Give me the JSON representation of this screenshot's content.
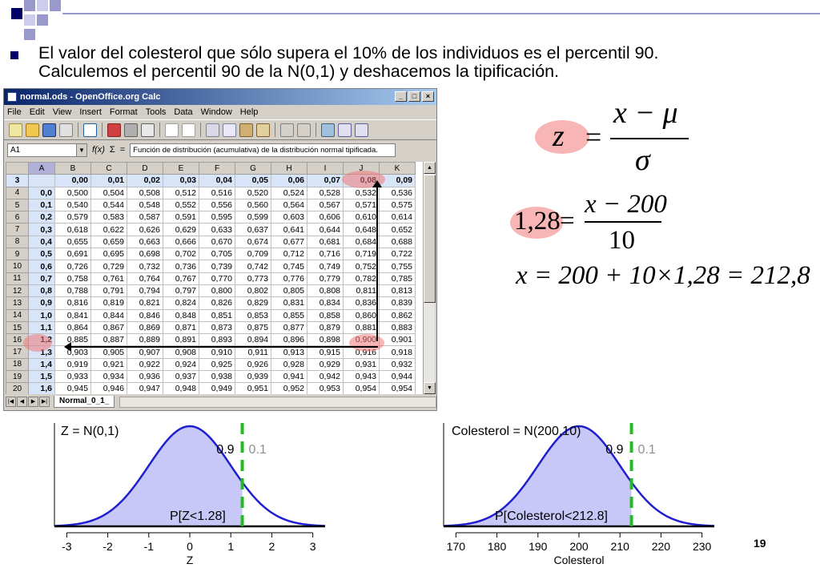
{
  "slide": {
    "bullet_line1": "El valor del colesterol que sólo supera el 10% de los individuos es el percentil 90.",
    "bullet_line2": "Calculemos el percentil 90 de la N(0,1) y deshacemos la tipificación.",
    "page_number": "19",
    "accent_color": "#000066"
  },
  "calc": {
    "window_title": "normal.ods - OpenOffice.org Calc",
    "menu": [
      "File",
      "Edit",
      "View",
      "Insert",
      "Format",
      "Tools",
      "Data",
      "Window",
      "Help"
    ],
    "name_box": "A1",
    "fx_label": "f(x)",
    "sigma_label": "Σ",
    "equals_label": "=",
    "formula_text": "Función de distribución (acumulativa) de la distribución normal tipificada.",
    "sheet_tab": "Normal_0_1_",
    "col_headers": [
      "A",
      "B",
      "C",
      "D",
      "E",
      "F",
      "G",
      "H",
      "I",
      "J",
      "K"
    ],
    "header_row": {
      "num": "3",
      "cells": [
        "",
        "0,00",
        "0,01",
        "0,02",
        "0,03",
        "0,04",
        "0,05",
        "0,06",
        "0,07",
        "0,08",
        "0,09"
      ]
    },
    "rows": [
      {
        "num": "4",
        "cells": [
          "0,0",
          "0,500",
          "0,504",
          "0,508",
          "0,512",
          "0,516",
          "0,520",
          "0,524",
          "0,528",
          "0,532",
          "0,536"
        ]
      },
      {
        "num": "5",
        "cells": [
          "0,1",
          "0,540",
          "0,544",
          "0,548",
          "0,552",
          "0,556",
          "0,560",
          "0,564",
          "0,567",
          "0,571",
          "0,575"
        ]
      },
      {
        "num": "6",
        "cells": [
          "0,2",
          "0,579",
          "0,583",
          "0,587",
          "0,591",
          "0,595",
          "0,599",
          "0,603",
          "0,606",
          "0,610",
          "0,614"
        ]
      },
      {
        "num": "7",
        "cells": [
          "0,3",
          "0,618",
          "0,622",
          "0,626",
          "0,629",
          "0,633",
          "0,637",
          "0,641",
          "0,644",
          "0,648",
          "0,652"
        ]
      },
      {
        "num": "8",
        "cells": [
          "0,4",
          "0,655",
          "0,659",
          "0,663",
          "0,666",
          "0,670",
          "0,674",
          "0,677",
          "0,681",
          "0,684",
          "0,688"
        ]
      },
      {
        "num": "9",
        "cells": [
          "0,5",
          "0,691",
          "0,695",
          "0,698",
          "0,702",
          "0,705",
          "0,709",
          "0,712",
          "0,716",
          "0,719",
          "0,722"
        ]
      },
      {
        "num": "10",
        "cells": [
          "0,6",
          "0,726",
          "0,729",
          "0,732",
          "0,736",
          "0,739",
          "0,742",
          "0,745",
          "0,749",
          "0,752",
          "0,755"
        ]
      },
      {
        "num": "11",
        "cells": [
          "0,7",
          "0,758",
          "0,761",
          "0,764",
          "0,767",
          "0,770",
          "0,773",
          "0,776",
          "0,779",
          "0,782",
          "0,785"
        ]
      },
      {
        "num": "12",
        "cells": [
          "0,8",
          "0,788",
          "0,791",
          "0,794",
          "0,797",
          "0,800",
          "0,802",
          "0,805",
          "0,808",
          "0,811",
          "0,813"
        ]
      },
      {
        "num": "13",
        "cells": [
          "0,9",
          "0,816",
          "0,819",
          "0,821",
          "0,824",
          "0,826",
          "0,829",
          "0,831",
          "0,834",
          "0,836",
          "0,839"
        ]
      },
      {
        "num": "14",
        "cells": [
          "1,0",
          "0,841",
          "0,844",
          "0,846",
          "0,848",
          "0,851",
          "0,853",
          "0,855",
          "0,858",
          "0,860",
          "0,862"
        ]
      },
      {
        "num": "15",
        "cells": [
          "1,1",
          "0,864",
          "0,867",
          "0,869",
          "0,871",
          "0,873",
          "0,875",
          "0,877",
          "0,879",
          "0,881",
          "0,883"
        ]
      },
      {
        "num": "16",
        "cells": [
          "1,2",
          "0,885",
          "0,887",
          "0,889",
          "0,891",
          "0,893",
          "0,894",
          "0,896",
          "0,898",
          "0,900",
          "0,901"
        ]
      },
      {
        "num": "17",
        "cells": [
          "1,3",
          "0,903",
          "0,905",
          "0,907",
          "0,908",
          "0,910",
          "0,911",
          "0,913",
          "0,915",
          "0,916",
          "0,918"
        ]
      },
      {
        "num": "18",
        "cells": [
          "1,4",
          "0,919",
          "0,921",
          "0,922",
          "0,924",
          "0,925",
          "0,926",
          "0,928",
          "0,929",
          "0,931",
          "0,932"
        ]
      },
      {
        "num": "19",
        "cells": [
          "1,5",
          "0,933",
          "0,934",
          "0,936",
          "0,937",
          "0,938",
          "0,939",
          "0,941",
          "0,942",
          "0,943",
          "0,944"
        ]
      },
      {
        "num": "20",
        "cells": [
          "1,6",
          "0,945",
          "0,946",
          "0,947",
          "0,948",
          "0,949",
          "0,951",
          "0,952",
          "0,953",
          "0,954",
          "0,954"
        ]
      }
    ]
  },
  "formulas": {
    "f1_lhs": "z",
    "f1_eq": "=",
    "f1_num": "x − μ",
    "f1_den": "σ",
    "f2_lhs": "1,28",
    "f2_eq": "=",
    "f2_num": "x − 200",
    "f2_den": "10",
    "f3": "x = 200 + 10×1,28 = 212,8"
  },
  "chart_data": [
    {
      "type": "area",
      "distribution": "normal",
      "mean": 0,
      "sd": 1,
      "title": "Z = N(0,1)",
      "xlabel": "Z",
      "ylabel": "",
      "xlim": [
        -3.3,
        3.3
      ],
      "xticks": [
        -3,
        -2,
        -1,
        0,
        1,
        2,
        3
      ],
      "x_tick_labels": [
        "-3",
        "-2",
        "-1",
        "0",
        "1",
        "2",
        "3"
      ],
      "cutoff": 1.28,
      "left_area_label": "0.9",
      "right_area_label": "0.1",
      "shade_label": "P[Z<1.28]",
      "curve_color": "#1f1fd0",
      "fill_color": "#c8c8f8",
      "cutoff_color": "#22bb22"
    },
    {
      "type": "area",
      "distribution": "normal",
      "mean": 200,
      "sd": 10,
      "title": "Colesterol = N(200,10)",
      "xlabel": "Colesterol",
      "ylabel": "",
      "xlim": [
        167,
        233
      ],
      "xticks": [
        170,
        180,
        190,
        200,
        210,
        220,
        230
      ],
      "x_tick_labels": [
        "170",
        "180",
        "190",
        "200",
        "210",
        "220",
        "230"
      ],
      "cutoff": 212.8,
      "left_area_label": "0.9",
      "right_area_label": "0.1",
      "shade_label": "P[Colesterol<212.8]",
      "curve_color": "#1f1fd0",
      "fill_color": "#c8c8f8",
      "cutoff_color": "#22bb22"
    }
  ]
}
